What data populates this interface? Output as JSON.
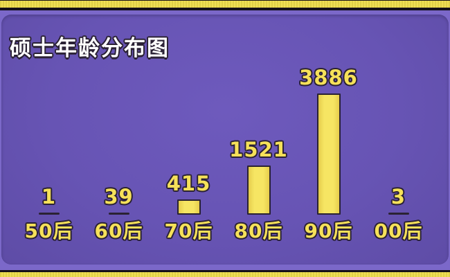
{
  "header": {
    "title": "硕士年龄分布图"
  },
  "colors": {
    "frame_band": "#eedd4b",
    "frame_rule": "#141018",
    "background_purple": "#6754b4",
    "backdrop_purple_light": "#7b68c9",
    "bar_fill": "#f3df58",
    "bar_outline": "#2a2233",
    "label_yellow": "#f6e159",
    "title_white": "#ffffff"
  },
  "chart_data": {
    "type": "bar",
    "title": "硕士年龄分布图",
    "categories": [
      "50后",
      "60后",
      "70后",
      "80后",
      "90后",
      "00后"
    ],
    "values": [
      1,
      39,
      415,
      1521,
      3886,
      3
    ],
    "value_labels": [
      "1",
      "39",
      "415",
      "1521",
      "3886",
      "3"
    ],
    "xlabel": "",
    "ylabel": "",
    "ylim": [
      0,
      3886
    ],
    "grid": false,
    "legend": "none",
    "orientation": "vertical",
    "data_labels_position": "above-bars",
    "bar_color": "#f3df58",
    "background_color": "#6754b4"
  }
}
